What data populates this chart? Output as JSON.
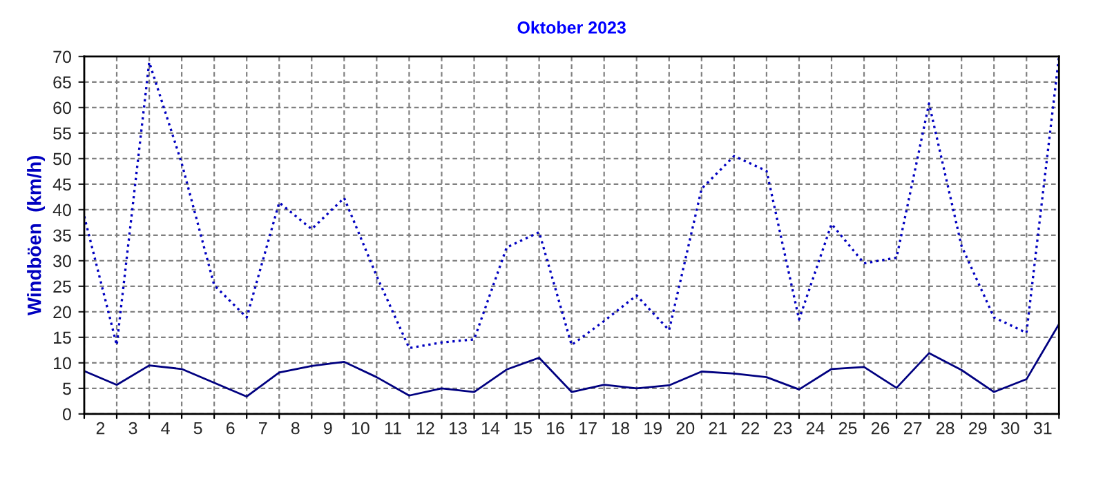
{
  "chart_data": {
    "type": "line",
    "title": "Oktober 2023",
    "ylabel": "Windböen  (km/h)",
    "x": [
      1.5,
      2.5,
      3.5,
      4.5,
      5.5,
      6.5,
      7.5,
      8.5,
      9.5,
      10.5,
      11.5,
      12.5,
      13.5,
      14.5,
      15.5,
      16.5,
      17.5,
      18.5,
      19.5,
      20.5,
      21.5,
      22.5,
      23.5,
      24.5,
      25.5,
      26.5,
      27.5,
      28.5,
      29.5,
      30.5,
      31.5
    ],
    "series": [
      {
        "color": "#0000c0",
        "line_style": "dotted",
        "values": [
          38.7,
          13.5,
          68.9,
          49.1,
          25.2,
          18.9,
          41.4,
          36.2,
          42.3,
          27,
          12.9,
          14.0,
          14.6,
          32.6,
          35.6,
          13.5,
          18.2,
          23.2,
          16.4,
          44.1,
          50.5,
          47.6,
          18.5,
          37.2,
          29.5,
          30.6,
          60.8,
          32.9,
          18.9,
          15.9,
          70
        ]
      },
      {
        "color": "#000080",
        "line_style": "solid",
        "values": [
          8.4,
          5.7,
          9.5,
          8.8,
          6.1,
          3.4,
          8.1,
          9.4,
          10.2,
          7.2,
          3.6,
          5.0,
          4.3,
          8.7,
          11.0,
          4.3,
          5.7,
          5.0,
          5.6,
          8.3,
          7.9,
          7.2,
          4.8,
          8.8,
          9.2,
          5.1,
          11.9,
          8.6,
          4.3,
          6.8,
          17.6
        ]
      }
    ],
    "xlim": [
      1.5,
      31.5
    ],
    "xticks": [
      {
        "value": 1.5,
        "label": null
      },
      2,
      {
        "value": 2.5,
        "label": null
      },
      3,
      {
        "value": 3.5,
        "label": null
      },
      4,
      {
        "value": 4.5,
        "label": null
      },
      5,
      {
        "value": 5.5,
        "label": null
      },
      6,
      {
        "value": 6.5,
        "label": null
      },
      7,
      {
        "value": 7.5,
        "label": null
      },
      8,
      {
        "value": 8.5,
        "label": null
      },
      9,
      {
        "value": 9.5,
        "label": null
      },
      10,
      {
        "value": 10.5,
        "label": null
      },
      11,
      {
        "value": 11.5,
        "label": null
      },
      12,
      {
        "value": 12.5,
        "label": null
      },
      13,
      {
        "value": 13.5,
        "label": null
      },
      14,
      {
        "value": 14.5,
        "label": null
      },
      15,
      {
        "value": 15.5,
        "label": null
      },
      16,
      {
        "value": 16.5,
        "label": null
      },
      17,
      {
        "value": 17.5,
        "label": null
      },
      18,
      {
        "value": 18.5,
        "label": null
      },
      19,
      {
        "value": 19.5,
        "label": null
      },
      20,
      {
        "value": 20.5,
        "label": null
      },
      21,
      {
        "value": 21.5,
        "label": null
      },
      22,
      {
        "value": 22.5,
        "label": null
      },
      23,
      {
        "value": 23.5,
        "label": null
      },
      24,
      {
        "value": 24.5,
        "label": null
      },
      25,
      {
        "value": 25.5,
        "label": null
      },
      26,
      {
        "value": 26.5,
        "label": null
      },
      27,
      {
        "value": 27.5,
        "label": null
      },
      28,
      {
        "value": 28.5,
        "label": null
      },
      29,
      {
        "value": 29.5,
        "label": null
      },
      30,
      {
        "value": 30.5,
        "label": null
      },
      31,
      {
        "value": 31.5,
        "label": null
      }
    ],
    "ylim": [
      0,
      70
    ],
    "yticks": [
      0,
      5,
      10,
      15,
      20,
      25,
      30,
      35,
      40,
      45,
      50,
      55,
      60,
      65,
      70
    ],
    "grid": true,
    "marker": "none"
  }
}
